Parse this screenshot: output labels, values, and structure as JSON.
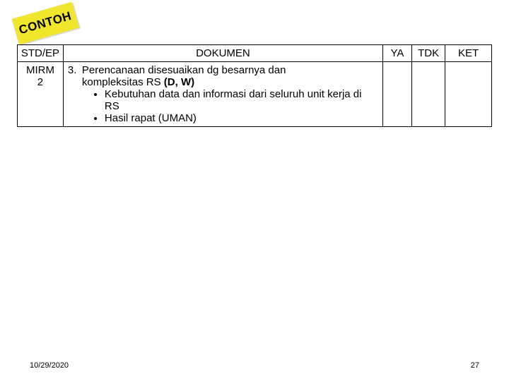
{
  "badge": {
    "label": "CONTOH",
    "bg_color": "#f0e62c"
  },
  "table": {
    "headers": {
      "std": "STD/EP",
      "dokumen": "DOKUMEN",
      "ya": "YA",
      "tdk": "TDK",
      "ket": "KET"
    },
    "row": {
      "std_line1": "MIRM",
      "std_line2": "2",
      "item_num": "3.",
      "item_text_line1": "Perencanaan disesuaikan dg besarnya dan",
      "item_text_line2_prefix": "kompleksitas RS ",
      "item_text_line2_bold": "(D, W)",
      "bullets": [
        "Kebutuhan data dan informasi dari seluruh unit kerja di RS",
        "Hasil  rapat (UMAN)"
      ],
      "ya": "",
      "tdk": "",
      "ket": ""
    }
  },
  "footer": {
    "date": "10/29/2020",
    "page": "27"
  },
  "colors": {
    "border": "#000000",
    "text": "#000000",
    "bg": "#ffffff"
  }
}
